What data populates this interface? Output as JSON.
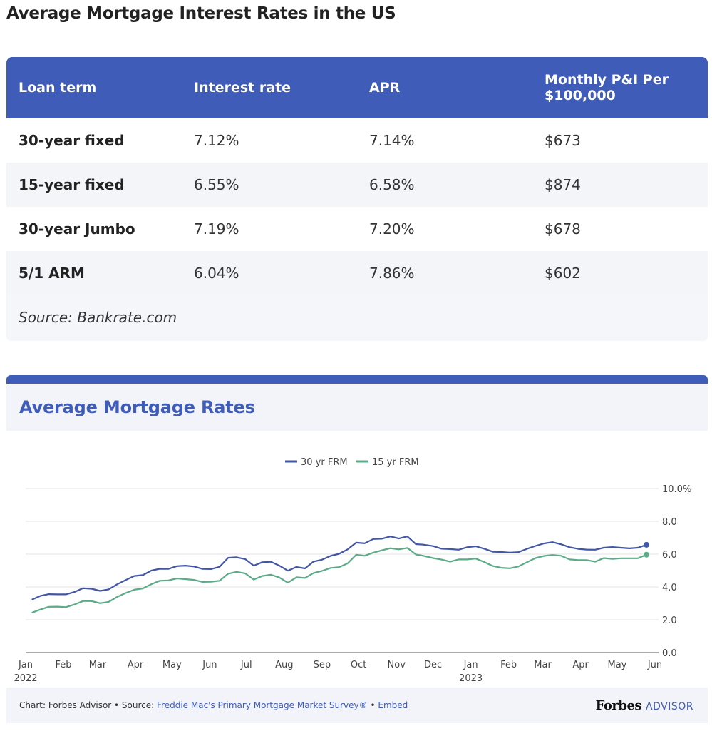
{
  "page_title": "Average Mortgage Interest Rates in the US",
  "table": {
    "headers": [
      "Loan term",
      "Interest rate",
      "APR",
      "Monthly P&I Per $100,000"
    ],
    "rows": [
      {
        "term": "30-year fixed",
        "rate": "7.12%",
        "apr": "7.14%",
        "payment": "$673"
      },
      {
        "term": "15-year fixed",
        "rate": "6.55%",
        "apr": "6.58%",
        "payment": "$874"
      },
      {
        "term": "30-year Jumbo",
        "rate": "7.19%",
        "apr": "7.20%",
        "payment": "$678"
      },
      {
        "term": "5/1 ARM",
        "rate": "6.04%",
        "apr": "7.86%",
        "payment": "$602"
      }
    ],
    "source": "Source: Bankrate.com"
  },
  "chart_section": {
    "title": "Average Mortgage Rates"
  },
  "chart_data": {
    "type": "line",
    "title": "",
    "xlabel": "",
    "ylabel": "",
    "x_tick_labels": [
      "Jan",
      "Feb",
      "Mar",
      "Apr",
      "May",
      "Jun",
      "Jul",
      "Aug",
      "Sep",
      "Oct",
      "Nov",
      "Dec",
      "Jan",
      "Feb",
      "Mar",
      "Apr",
      "May",
      "Jun"
    ],
    "x_year_labels": [
      {
        "tick": 0,
        "label": "2022"
      },
      {
        "tick": 12,
        "label": "2023"
      }
    ],
    "y_tick_labels": [
      "0.0",
      "2.0",
      "4.0",
      "6.0",
      "8.0",
      "10.0%"
    ],
    "ylim": [
      0,
      10
    ],
    "grid": true,
    "legend_position": "top-center",
    "series": [
      {
        "name": "30 yr FRM",
        "color": "#4256a6",
        "x": [
          "2022-01-06",
          "2022-01-13",
          "2022-01-20",
          "2022-01-27",
          "2022-02-03",
          "2022-02-10",
          "2022-02-17",
          "2022-02-24",
          "2022-03-03",
          "2022-03-10",
          "2022-03-17",
          "2022-03-24",
          "2022-03-31",
          "2022-04-07",
          "2022-04-14",
          "2022-04-21",
          "2022-04-28",
          "2022-05-05",
          "2022-05-12",
          "2022-05-19",
          "2022-05-26",
          "2022-06-02",
          "2022-06-09",
          "2022-06-16",
          "2022-06-23",
          "2022-06-30",
          "2022-07-07",
          "2022-07-14",
          "2022-07-21",
          "2022-07-28",
          "2022-08-04",
          "2022-08-11",
          "2022-08-18",
          "2022-08-25",
          "2022-09-01",
          "2022-09-08",
          "2022-09-15",
          "2022-09-22",
          "2022-09-29",
          "2022-10-06",
          "2022-10-13",
          "2022-10-20",
          "2022-10-27",
          "2022-11-03",
          "2022-11-10",
          "2022-11-17",
          "2022-11-23",
          "2022-12-01",
          "2022-12-08",
          "2022-12-15",
          "2022-12-22",
          "2022-12-29",
          "2023-01-05",
          "2023-01-12",
          "2023-01-19",
          "2023-01-26",
          "2023-02-02",
          "2023-02-09",
          "2023-02-16",
          "2023-02-23",
          "2023-03-02",
          "2023-03-09",
          "2023-03-16",
          "2023-03-23",
          "2023-03-30",
          "2023-04-06",
          "2023-04-13",
          "2023-04-20",
          "2023-04-27",
          "2023-05-04",
          "2023-05-11",
          "2023-05-18",
          "2023-05-25"
        ],
        "values": [
          3.22,
          3.45,
          3.56,
          3.55,
          3.55,
          3.69,
          3.92,
          3.89,
          3.76,
          3.85,
          4.16,
          4.42,
          4.67,
          4.72,
          5.0,
          5.11,
          5.1,
          5.27,
          5.3,
          5.25,
          5.1,
          5.09,
          5.23,
          5.78,
          5.81,
          5.7,
          5.3,
          5.51,
          5.54,
          5.3,
          4.99,
          5.22,
          5.13,
          5.55,
          5.66,
          5.89,
          6.02,
          6.29,
          6.7,
          6.66,
          6.92,
          6.94,
          7.08,
          6.95,
          7.08,
          6.61,
          6.58,
          6.49,
          6.33,
          6.31,
          6.27,
          6.42,
          6.48,
          6.33,
          6.15,
          6.13,
          6.09,
          6.12,
          6.32,
          6.5,
          6.65,
          6.73,
          6.6,
          6.42,
          6.32,
          6.28,
          6.27,
          6.39,
          6.43,
          6.39,
          6.35,
          6.39,
          6.57
        ]
      },
      {
        "name": "15 yr FRM",
        "color": "#5bab88",
        "x": [
          "2022-01-06",
          "2022-01-13",
          "2022-01-20",
          "2022-01-27",
          "2022-02-03",
          "2022-02-10",
          "2022-02-17",
          "2022-02-24",
          "2022-03-03",
          "2022-03-10",
          "2022-03-17",
          "2022-03-24",
          "2022-03-31",
          "2022-04-07",
          "2022-04-14",
          "2022-04-21",
          "2022-04-28",
          "2022-05-05",
          "2022-05-12",
          "2022-05-19",
          "2022-05-26",
          "2022-06-02",
          "2022-06-09",
          "2022-06-16",
          "2022-06-23",
          "2022-06-30",
          "2022-07-07",
          "2022-07-14",
          "2022-07-21",
          "2022-07-28",
          "2022-08-04",
          "2022-08-11",
          "2022-08-18",
          "2022-08-25",
          "2022-09-01",
          "2022-09-08",
          "2022-09-15",
          "2022-09-22",
          "2022-09-29",
          "2022-10-06",
          "2022-10-13",
          "2022-10-20",
          "2022-10-27",
          "2022-11-03",
          "2022-11-10",
          "2022-11-17",
          "2022-11-23",
          "2022-12-01",
          "2022-12-08",
          "2022-12-15",
          "2022-12-22",
          "2022-12-29",
          "2023-01-05",
          "2023-01-12",
          "2023-01-19",
          "2023-01-26",
          "2023-02-02",
          "2023-02-09",
          "2023-02-16",
          "2023-02-23",
          "2023-03-02",
          "2023-03-09",
          "2023-03-16",
          "2023-03-23",
          "2023-03-30",
          "2023-04-06",
          "2023-04-13",
          "2023-04-20",
          "2023-04-27",
          "2023-05-04",
          "2023-05-11",
          "2023-05-18",
          "2023-05-25"
        ],
        "values": [
          2.43,
          2.62,
          2.79,
          2.8,
          2.77,
          2.93,
          3.14,
          3.14,
          3.01,
          3.09,
          3.39,
          3.63,
          3.83,
          3.91,
          4.17,
          4.38,
          4.4,
          4.52,
          4.48,
          4.43,
          4.31,
          4.32,
          4.38,
          4.81,
          4.92,
          4.83,
          4.45,
          4.67,
          4.75,
          4.58,
          4.26,
          4.59,
          4.55,
          4.85,
          4.98,
          5.16,
          5.21,
          5.44,
          5.96,
          5.9,
          6.09,
          6.23,
          6.36,
          6.29,
          6.38,
          5.98,
          5.9,
          5.76,
          5.67,
          5.54,
          5.68,
          5.68,
          5.73,
          5.52,
          5.28,
          5.17,
          5.14,
          5.25,
          5.51,
          5.76,
          5.89,
          5.95,
          5.9,
          5.68,
          5.64,
          5.64,
          5.54,
          5.76,
          5.71,
          5.75,
          5.75,
          5.75,
          5.97
        ]
      }
    ]
  },
  "footer": {
    "prefix": "Chart: Forbes Advisor • Source: ",
    "source_link": "Freddie Mac's Primary Mortgage Market Survey®",
    "separator": " • ",
    "embed_link": "Embed",
    "brand_name": "Forbes",
    "brand_suffix": "ADVISOR"
  }
}
